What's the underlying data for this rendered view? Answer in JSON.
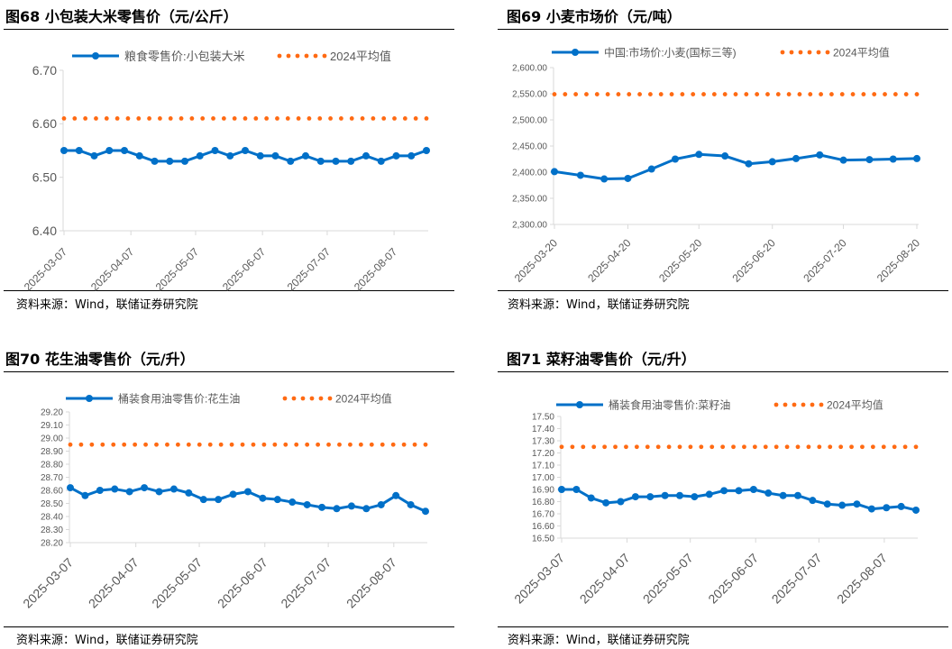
{
  "source_text": "资料来源：Wind，联储证券研究院",
  "colors": {
    "series": "#0070C8",
    "average": "#FF6A13",
    "axis": "#D9D9D9",
    "tick_text": "#595959"
  },
  "chart_data": [
    {
      "type": "line",
      "title": "图68 小包装大米零售价（元/公斤）",
      "ylim": [
        6.4,
        6.7
      ],
      "yticks": [
        "6.40",
        "6.50",
        "6.60",
        "6.70"
      ],
      "xticks": [
        "2025-03-07",
        "2025-04-07",
        "2025-05-07",
        "2025-06-07",
        "2025-07-07",
        "2025-08-07"
      ],
      "x": [
        "2025-03-07",
        "2025-03-14",
        "2025-03-21",
        "2025-03-28",
        "2025-04-04",
        "2025-04-11",
        "2025-04-18",
        "2025-04-25",
        "2025-05-02",
        "2025-05-09",
        "2025-05-16",
        "2025-05-23",
        "2025-05-30",
        "2025-06-06",
        "2025-06-13",
        "2025-06-20",
        "2025-06-27",
        "2025-07-04",
        "2025-07-11",
        "2025-07-18",
        "2025-07-25",
        "2025-08-01",
        "2025-08-08",
        "2025-08-15",
        "2025-08-22"
      ],
      "series": [
        {
          "name": "粮食零售价:小包装大米",
          "values": [
            6.55,
            6.55,
            6.54,
            6.55,
            6.55,
            6.54,
            6.53,
            6.53,
            6.53,
            6.54,
            6.55,
            6.54,
            6.55,
            6.54,
            6.54,
            6.53,
            6.54,
            6.53,
            6.53,
            6.53,
            6.54,
            6.53,
            6.54,
            6.54,
            6.55
          ]
        },
        {
          "name": "2024平均值",
          "value": 6.61
        }
      ],
      "legend": "top"
    },
    {
      "type": "line",
      "title": "图69 小麦市场价（元/吨）",
      "ylim": [
        2300,
        2600
      ],
      "yticks": [
        "2,300.00",
        "2,350.00",
        "2,400.00",
        "2,450.00",
        "2,500.00",
        "2,550.00",
        "2,600.00"
      ],
      "xticks": [
        "2025-03-20",
        "2025-04-20",
        "2025-05-20",
        "2025-06-20",
        "2025-07-20",
        "2025-08-20"
      ],
      "x": [
        "2025-03-20",
        "2025-03-31",
        "2025-04-10",
        "2025-04-20",
        "2025-04-30",
        "2025-05-10",
        "2025-05-20",
        "2025-05-31",
        "2025-06-10",
        "2025-06-20",
        "2025-06-30",
        "2025-07-10",
        "2025-07-20",
        "2025-07-31",
        "2025-08-10",
        "2025-08-20"
      ],
      "series": [
        {
          "name": "中国:市场价:小麦(国标三等)",
          "values": [
            2401,
            2394,
            2387,
            2388,
            2406,
            2425,
            2434,
            2431,
            2416,
            2420,
            2426,
            2433,
            2423,
            2424,
            2425,
            2426
          ]
        },
        {
          "name": "2024平均值",
          "value": 2549
        }
      ],
      "legend": "top"
    },
    {
      "type": "line",
      "title": "图70 花生油零售价（元/升）",
      "ylim": [
        28.2,
        29.2
      ],
      "yticks": [
        "28.20",
        "28.30",
        "28.40",
        "28.50",
        "28.60",
        "28.70",
        "28.80",
        "28.90",
        "29.00",
        "29.10",
        "29.20"
      ],
      "xticks": [
        "2025-03-07",
        "2025-04-07",
        "2025-05-07",
        "2025-06-07",
        "2025-07-07",
        "2025-08-07"
      ],
      "x": [
        "2025-03-07",
        "2025-03-14",
        "2025-03-21",
        "2025-03-28",
        "2025-04-04",
        "2025-04-11",
        "2025-04-18",
        "2025-04-25",
        "2025-05-02",
        "2025-05-09",
        "2025-05-16",
        "2025-05-23",
        "2025-05-30",
        "2025-06-06",
        "2025-06-13",
        "2025-06-20",
        "2025-06-27",
        "2025-07-04",
        "2025-07-11",
        "2025-07-18",
        "2025-07-25",
        "2025-08-01",
        "2025-08-08",
        "2025-08-15",
        "2025-08-22"
      ],
      "series": [
        {
          "name": "桶装食用油零售价:花生油",
          "values": [
            28.62,
            28.56,
            28.6,
            28.61,
            28.59,
            28.62,
            28.59,
            28.61,
            28.58,
            28.53,
            28.53,
            28.57,
            28.59,
            28.54,
            28.53,
            28.51,
            28.49,
            28.47,
            28.46,
            28.48,
            28.46,
            28.49,
            28.56,
            28.49,
            28.44
          ]
        },
        {
          "name": "2024平均值",
          "value": 28.95
        }
      ],
      "legend": "top"
    },
    {
      "type": "line",
      "title": "图71 菜籽油零售价（元/升）",
      "ylim": [
        16.5,
        17.5
      ],
      "yticks": [
        "16.50",
        "16.60",
        "16.70",
        "16.80",
        "16.90",
        "17.00",
        "17.10",
        "17.20",
        "17.30",
        "17.40",
        "17.50"
      ],
      "xticks": [
        "2025-03-07",
        "2025-04-07",
        "2025-05-07",
        "2025-06-07",
        "2025-07-07",
        "2025-08-07"
      ],
      "x": [
        "2025-03-07",
        "2025-03-14",
        "2025-03-21",
        "2025-03-28",
        "2025-04-04",
        "2025-04-11",
        "2025-04-18",
        "2025-04-25",
        "2025-05-02",
        "2025-05-09",
        "2025-05-16",
        "2025-05-23",
        "2025-05-30",
        "2025-06-06",
        "2025-06-13",
        "2025-06-20",
        "2025-06-27",
        "2025-07-04",
        "2025-07-11",
        "2025-07-18",
        "2025-07-25",
        "2025-08-01",
        "2025-08-08",
        "2025-08-15",
        "2025-08-22"
      ],
      "series": [
        {
          "name": "桶装食用油零售价:菜籽油",
          "values": [
            16.9,
            16.9,
            16.83,
            16.79,
            16.8,
            16.84,
            16.84,
            16.85,
            16.85,
            16.84,
            16.86,
            16.89,
            16.89,
            16.9,
            16.87,
            16.85,
            16.85,
            16.81,
            16.78,
            16.77,
            16.78,
            16.74,
            16.75,
            16.76,
            16.73
          ]
        },
        {
          "name": "2024平均值",
          "value": 17.25
        }
      ],
      "legend": "top"
    }
  ]
}
